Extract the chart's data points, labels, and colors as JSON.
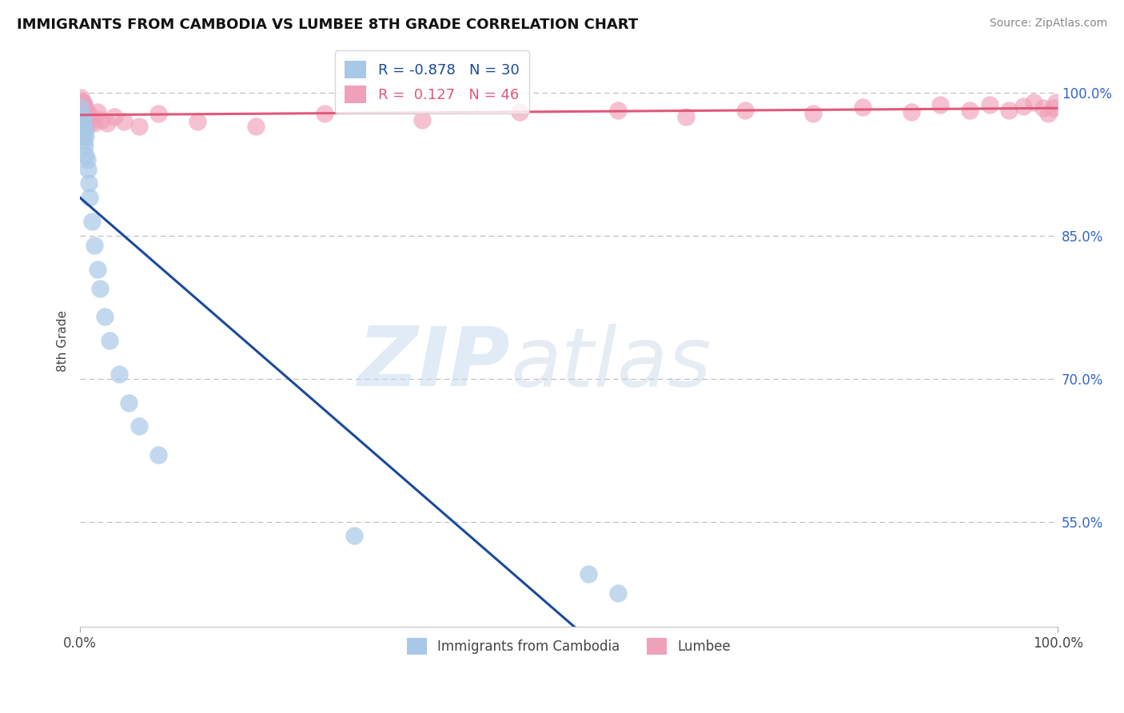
{
  "title": "IMMIGRANTS FROM CAMBODIA VS LUMBEE 8TH GRADE CORRELATION CHART",
  "source": "Source: ZipAtlas.com",
  "ylabel": "8th Grade",
  "xlim": [
    0.0,
    1.0
  ],
  "ylim": [
    0.44,
    1.04
  ],
  "ytick_labels": [
    "55.0%",
    "70.0%",
    "85.0%",
    "100.0%"
  ],
  "ytick_values": [
    0.55,
    0.7,
    0.85,
    1.0
  ],
  "legend_blue_r": "-0.878",
  "legend_blue_n": "30",
  "legend_pink_r": "0.127",
  "legend_pink_n": "46",
  "blue_color": "#A8C8E8",
  "pink_color": "#F0A0B8",
  "blue_line_color": "#1A4A9A",
  "pink_line_color": "#E05878",
  "blue_scatter_x": [
    0.001,
    0.001,
    0.002,
    0.002,
    0.003,
    0.003,
    0.003,
    0.004,
    0.004,
    0.005,
    0.005,
    0.006,
    0.006,
    0.007,
    0.008,
    0.009,
    0.01,
    0.012,
    0.015,
    0.018,
    0.02,
    0.025,
    0.03,
    0.04,
    0.05,
    0.06,
    0.08,
    0.28,
    0.52,
    0.55
  ],
  "blue_scatter_y": [
    0.985,
    0.975,
    0.97,
    0.96,
    0.965,
    0.955,
    0.975,
    0.95,
    0.965,
    0.945,
    0.96,
    0.935,
    0.955,
    0.93,
    0.92,
    0.905,
    0.89,
    0.865,
    0.84,
    0.815,
    0.795,
    0.765,
    0.74,
    0.705,
    0.675,
    0.65,
    0.62,
    0.535,
    0.495,
    0.475
  ],
  "pink_scatter_x": [
    0.001,
    0.001,
    0.002,
    0.002,
    0.003,
    0.003,
    0.004,
    0.004,
    0.005,
    0.005,
    0.006,
    0.007,
    0.007,
    0.008,
    0.009,
    0.01,
    0.012,
    0.015,
    0.018,
    0.022,
    0.028,
    0.035,
    0.045,
    0.06,
    0.08,
    0.12,
    0.18,
    0.25,
    0.35,
    0.45,
    0.55,
    0.62,
    0.68,
    0.75,
    0.8,
    0.85,
    0.88,
    0.91,
    0.93,
    0.95,
    0.965,
    0.975,
    0.985,
    0.99,
    0.995,
    0.998
  ],
  "pink_scatter_y": [
    0.995,
    0.985,
    0.99,
    0.98,
    0.99,
    0.982,
    0.988,
    0.978,
    0.984,
    0.976,
    0.982,
    0.98,
    0.97,
    0.976,
    0.972,
    0.968,
    0.975,
    0.968,
    0.98,
    0.972,
    0.968,
    0.975,
    0.97,
    0.965,
    0.978,
    0.97,
    0.965,
    0.978,
    0.972,
    0.98,
    0.982,
    0.975,
    0.982,
    0.978,
    0.985,
    0.98,
    0.988,
    0.982,
    0.988,
    0.982,
    0.986,
    0.99,
    0.984,
    0.978,
    0.984,
    0.99
  ]
}
